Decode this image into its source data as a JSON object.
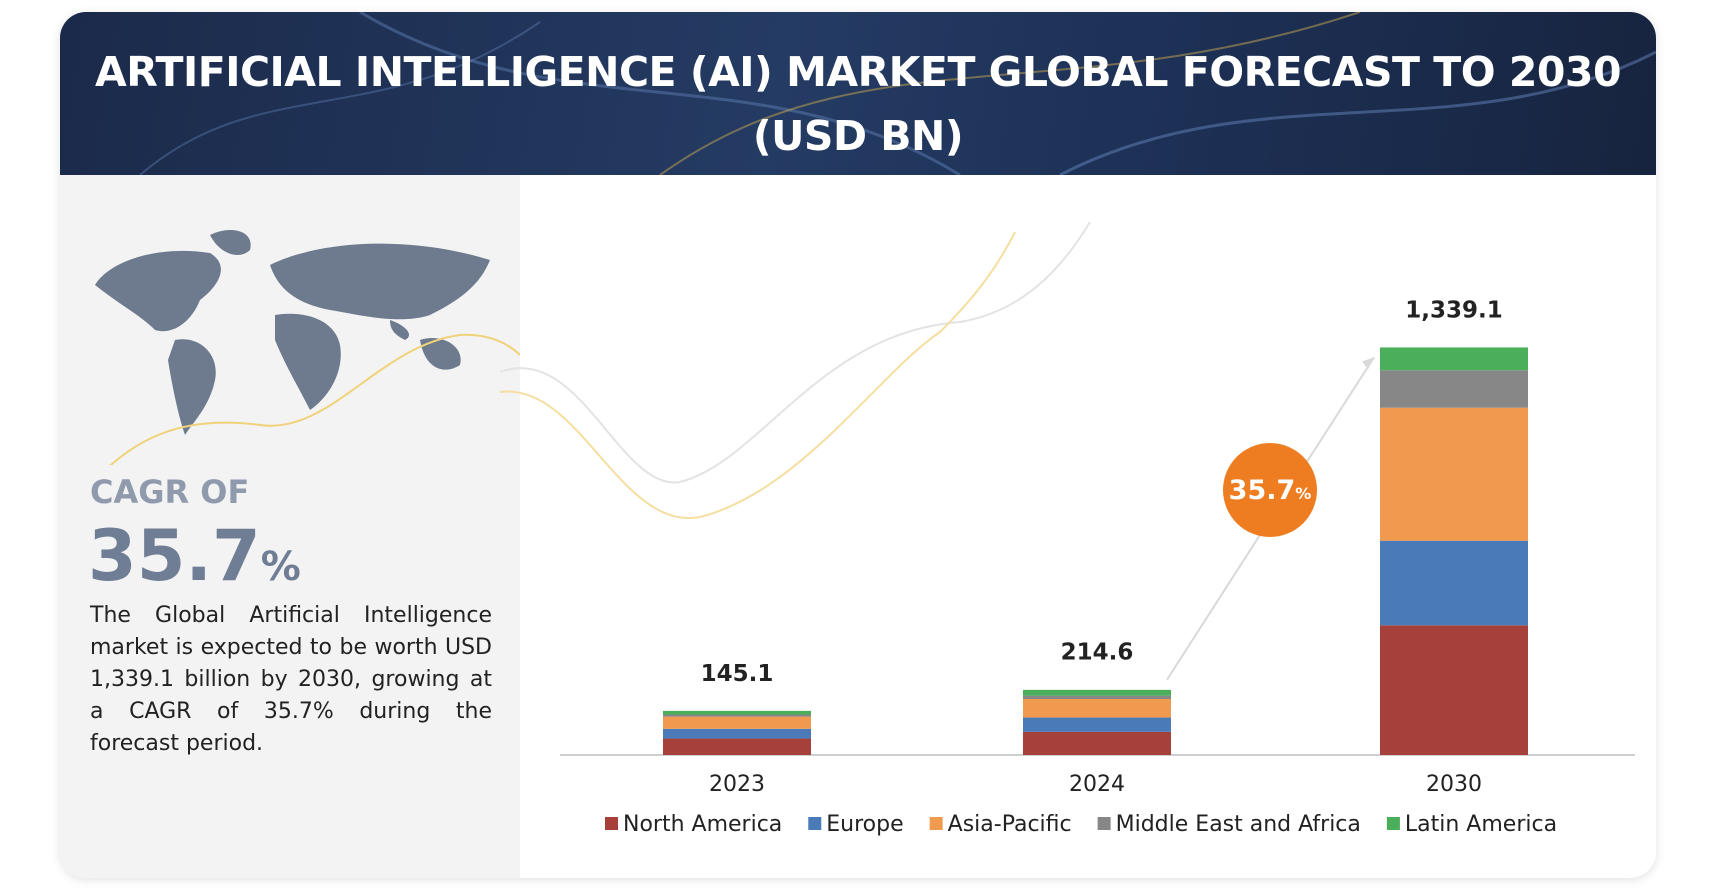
{
  "chart_data": {
    "type": "stacked_bar",
    "title": "ARTIFICIAL INTELLIGENCE (AI) MARKET GLOBAL FORECAST TO 2030 (USD BN)",
    "categories": [
      "2023",
      "2024",
      "2030"
    ],
    "series": [
      {
        "name": "North America",
        "color": "#a5413a",
        "values": [
          54,
          76,
          426
        ]
      },
      {
        "name": "Europe",
        "color": "#4a7ab8",
        "values": [
          32,
          47,
          278
        ]
      },
      {
        "name": "Asia-Pacific",
        "color": "#ef9a4f",
        "values": [
          40,
          61,
          437
        ]
      },
      {
        "name": "Middle East and Africa",
        "color": "#878787",
        "values": [
          7,
          11,
          123
        ]
      },
      {
        "name": "Latin America",
        "color": "#4aae5a",
        "values": [
          12,
          19,
          75
        ]
      }
    ],
    "totals": [
      145.1,
      214.6,
      1339.1
    ],
    "total_labels": [
      "145.1",
      "214.6",
      "1,339.1"
    ],
    "ylim": [
      0,
      1600
    ],
    "cagr_badge": {
      "value": "35.7",
      "unit": "%"
    }
  },
  "side_panel": {
    "cagr_label": "CAGR OF",
    "cagr_value": "35.7",
    "cagr_unit": "%",
    "description": "The Global Artificial Intelligence market is expected to be worth USD 1,339.1 billion by 2030, growing at a CAGR of 35.7% during the forecast period."
  }
}
